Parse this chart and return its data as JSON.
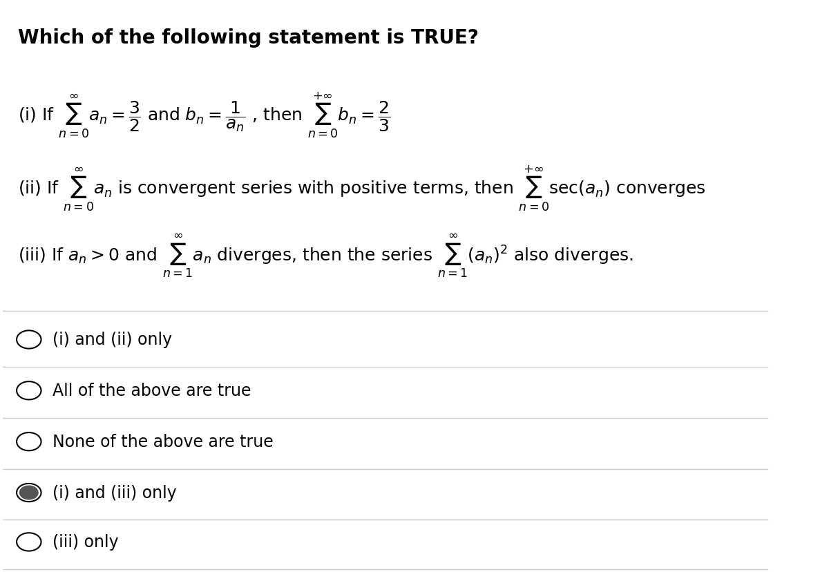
{
  "title": "Which of the following statement is TRUE?",
  "background_color": "#ffffff",
  "text_color": "#000000",
  "figsize": [
    12.0,
    8.29
  ],
  "dpi": 100,
  "options": [
    {
      "label": "(i) and (ii) only",
      "selected": false
    },
    {
      "label": "All of the above are true",
      "selected": false
    },
    {
      "label": "None of the above are true",
      "selected": false
    },
    {
      "label": "(i) and (iii) only",
      "selected": true
    },
    {
      "label": "(iii) only",
      "selected": false
    }
  ],
  "divider_color": "#cccccc",
  "circle_color": "#000000",
  "selected_fill": "#555555",
  "unselected_fill": "#ffffff",
  "font_size_title": 20,
  "font_size_statement": 18,
  "font_size_option": 17
}
